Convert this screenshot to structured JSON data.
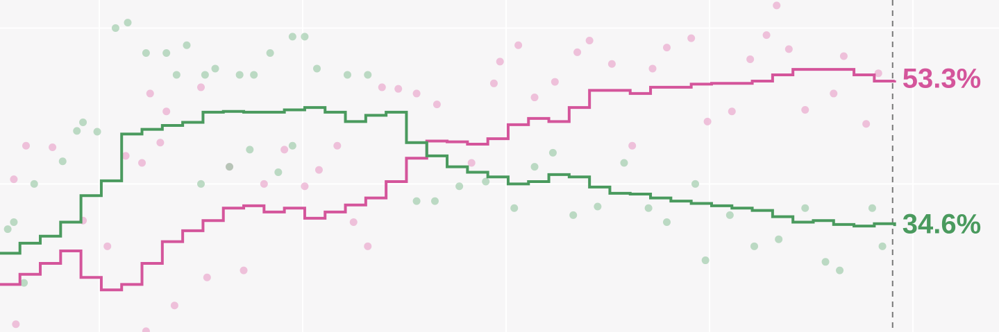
{
  "chart_data": {
    "type": "line",
    "line_shape": "step",
    "xlim": [
      51.2,
      542.3
    ],
    "ylim": [
      21.0,
      63.6
    ],
    "xticks": [
      100,
      200,
      300,
      400,
      500
    ],
    "yticks": [
      40,
      60
    ],
    "grid": true,
    "vline_x": 490,
    "x": [
      51,
      61,
      71,
      81,
      91,
      101,
      111,
      121,
      131,
      141,
      151,
      161,
      171,
      181,
      191,
      201,
      211,
      221,
      231,
      241,
      251,
      261,
      271,
      281,
      291,
      301,
      311,
      321,
      331,
      341,
      351,
      361,
      371,
      381,
      391,
      401,
      411,
      421,
      431,
      441,
      451,
      461,
      471,
      481,
      491
    ],
    "series": [
      {
        "color": "#d4559b",
        "end_label": "53.3%",
        "values": [
          27.1,
          28.4,
          29.8,
          31.4,
          28.0,
          26.4,
          27.1,
          29.8,
          32.6,
          34.0,
          35.3,
          36.9,
          37.2,
          36.4,
          36.9,
          35.6,
          36.4,
          37.3,
          38.2,
          40.3,
          43.3,
          45.5,
          45.4,
          45.1,
          45.8,
          47.6,
          48.4,
          48.0,
          49.8,
          52.0,
          52.0,
          51.6,
          52.4,
          52.4,
          52.8,
          52.9,
          52.9,
          53.2,
          54.0,
          54.7,
          54.7,
          54.7,
          54.0,
          53.2,
          53.3
        ]
      },
      {
        "color": "#4a9a5e",
        "end_label": "34.6%",
        "values": [
          31.1,
          32.4,
          33.3,
          35.1,
          38.5,
          40.4,
          46.4,
          47.0,
          47.5,
          47.9,
          49.2,
          49.3,
          49.2,
          49.2,
          49.5,
          49.8,
          49.2,
          48.0,
          48.8,
          49.2,
          45.3,
          43.6,
          42.2,
          41.5,
          40.9,
          40.0,
          40.3,
          41.2,
          40.9,
          39.6,
          38.8,
          38.7,
          38.2,
          37.8,
          37.5,
          37.2,
          36.9,
          36.6,
          35.8,
          35.1,
          35.3,
          34.8,
          34.6,
          34.9,
          34.6
        ]
      }
    ],
    "scatter": [
      {
        "color": "#e79cc6",
        "x": [
          64,
          77,
          58,
          92,
          104,
          113,
          121,
          125,
          133,
          130,
          137,
          150,
          153,
          164,
          171,
          181,
          191,
          201,
          208,
          217,
          225,
          232,
          239,
          247,
          256,
          266,
          283,
          294,
          297,
          306,
          314,
          324,
          335,
          341,
          352,
          362,
          372,
          379,
          391,
          399,
          411,
          420,
          428,
          439,
          447,
          461,
          466,
          477,
          483,
          433,
          59,
          123
        ],
        "y": [
          44.9,
          44.7,
          40.6,
          35.3,
          32.0,
          43.6,
          42.7,
          51.6,
          49.3,
          45.3,
          24.4,
          52.4,
          28.0,
          42.2,
          28.9,
          40.0,
          44.4,
          39.7,
          41.8,
          44.9,
          35.1,
          32.0,
          52.4,
          52.2,
          51.6,
          50.2,
          42.7,
          52.9,
          55.7,
          57.8,
          51.1,
          53.1,
          56.9,
          58.4,
          55.4,
          44.9,
          54.8,
          57.5,
          58.7,
          48.0,
          49.3,
          56.0,
          59.1,
          57.3,
          49.5,
          51.6,
          56.4,
          47.7,
          54.2,
          62.9,
          22.0,
          21.1
        ]
      },
      {
        "color": "#93c7a0",
        "x": [
          55,
          68,
          82,
          89,
          92,
          99,
          108,
          114,
          123,
          133,
          143,
          138,
          152,
          157,
          169,
          176,
          184,
          195,
          201,
          207,
          222,
          232,
          150,
          164,
          174,
          188,
          195,
          256,
          265,
          277,
          290,
          304,
          314,
          323,
          333,
          345,
          358,
          370,
          379,
          393,
          398,
          410,
          422,
          434,
          447,
          457,
          464,
          480,
          485,
          58,
          63
        ],
        "y": [
          34.2,
          40.0,
          42.9,
          46.8,
          47.9,
          46.7,
          60.0,
          60.7,
          56.8,
          56.8,
          57.8,
          54.0,
          54.0,
          54.8,
          54.0,
          54.0,
          56.8,
          58.9,
          58.9,
          54.8,
          54.0,
          54.0,
          40.0,
          42.2,
          44.4,
          41.5,
          44.9,
          37.8,
          37.8,
          39.7,
          40.3,
          36.9,
          42.2,
          44.0,
          36.0,
          37.1,
          42.7,
          36.9,
          35.1,
          40.0,
          30.2,
          36.0,
          32.0,
          32.9,
          36.9,
          30.0,
          28.9,
          36.9,
          32.0,
          35.1,
          27.3
        ]
      }
    ]
  }
}
